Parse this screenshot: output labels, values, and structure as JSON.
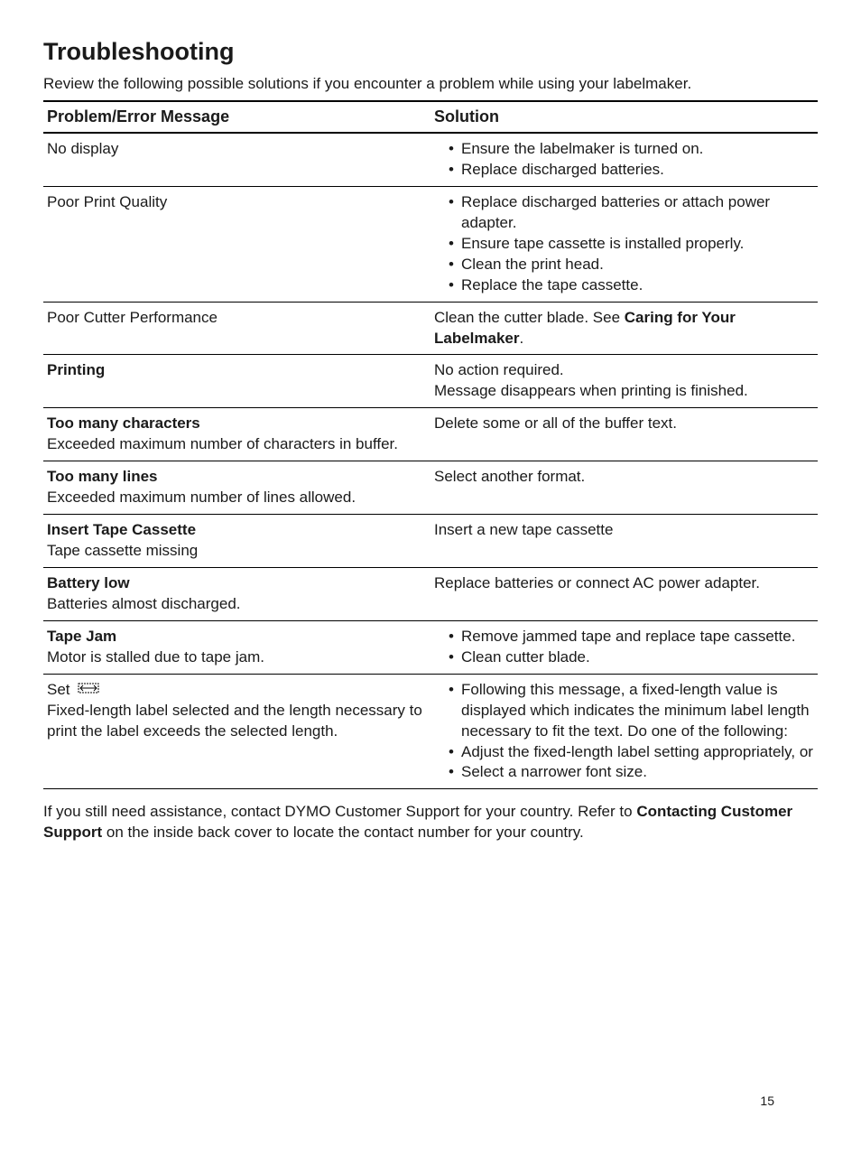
{
  "title": "Troubleshooting",
  "intro": "Review the following possible solutions if you encounter a problem while using your labelmaker.",
  "table": {
    "headers": {
      "problem": "Problem/Error Message",
      "solution": "Solution"
    },
    "rows": [
      {
        "problem_main": "No display",
        "problem_sub": "",
        "problem_bold": false,
        "solution_type": "list",
        "solution_items": [
          "Ensure the labelmaker is turned on.",
          "Replace discharged batteries."
        ]
      },
      {
        "problem_main": "Poor Print Quality",
        "problem_sub": "",
        "problem_bold": false,
        "solution_type": "list",
        "solution_items": [
          "Replace discharged batteries or attach power adapter.",
          "Ensure tape cassette is installed properly.",
          "Clean the print head.",
          "Replace the tape cassette."
        ]
      },
      {
        "problem_main": "Poor Cutter Performance",
        "problem_sub": "",
        "problem_bold": false,
        "solution_type": "text_with_bold",
        "solution_prefix": "Clean the cutter blade. See ",
        "solution_bold": "Caring for Your Labelmaker",
        "solution_suffix": "."
      },
      {
        "problem_main": "Printing",
        "problem_sub": "",
        "problem_bold": true,
        "solution_type": "lines",
        "solution_lines": [
          "No action required.",
          "Message disappears when printing is finished."
        ]
      },
      {
        "problem_main": "Too many characters",
        "problem_sub": "Exceeded maximum number of characters in buffer.",
        "problem_bold": true,
        "solution_type": "text",
        "solution_text": "Delete some or all of the buffer text."
      },
      {
        "problem_main": "Too many lines",
        "problem_sub": "Exceeded maximum number of lines allowed.",
        "problem_bold": true,
        "solution_type": "text",
        "solution_text": "Select another format."
      },
      {
        "problem_main": "Insert Tape Cassette",
        "problem_sub": "Tape cassette missing",
        "problem_bold": true,
        "solution_type": "text",
        "solution_text": "Insert a new tape cassette"
      },
      {
        "problem_main": "Battery low",
        "problem_sub": "Batteries almost discharged.",
        "problem_bold": true,
        "solution_type": "text",
        "solution_text": "Replace batteries or connect AC power adapter."
      },
      {
        "problem_main": "Tape Jam",
        "problem_sub": "Motor is stalled due to tape jam.",
        "problem_bold": true,
        "solution_type": "list",
        "solution_items": [
          "Remove jammed tape and replace tape cassette.",
          "Clean cutter blade."
        ]
      },
      {
        "problem_main": "Set",
        "problem_has_icon": true,
        "problem_sub": "Fixed-length label selected and the length necessary to print the label exceeds the selected length.",
        "problem_bold": false,
        "solution_type": "list",
        "solution_items": [
          "Following this message, a fixed-length value is displayed which indicates the minimum label length necessary to fit the text. Do one of the following:",
          "Adjust the fixed-length label setting appropriately, or",
          "Select a narrower font size."
        ]
      }
    ]
  },
  "footer": {
    "part1": "If you still need assistance, contact DYMO Customer Support for your country. Refer to ",
    "bold1": "Contacting Customer Support",
    "part2": " on the inside back cover to locate the contact number for your country."
  },
  "page_number": "15"
}
